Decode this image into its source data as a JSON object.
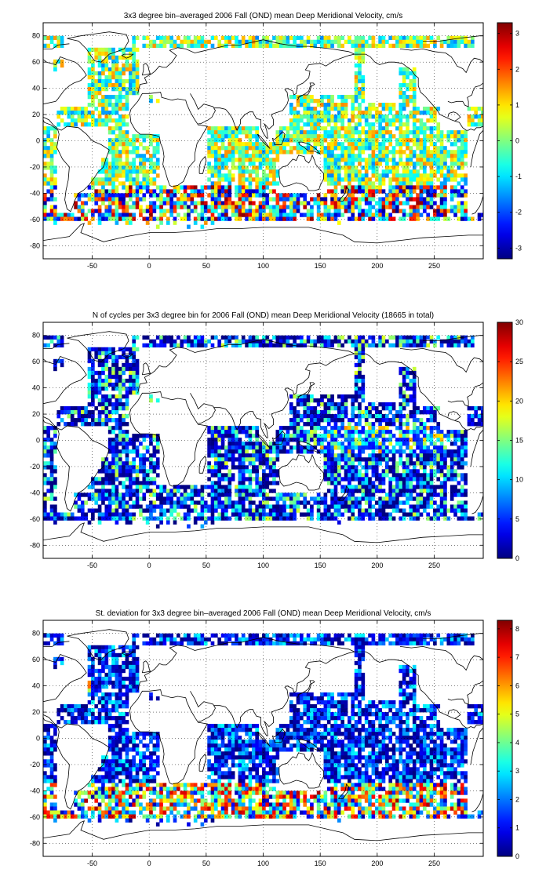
{
  "chart_data": [
    {
      "type": "heatmap",
      "title": "3x3 degree bin–averaged 2006 Fall (OND) mean Deep Meridional Velocity, cm/s",
      "xlabel": "",
      "ylabel": "",
      "xlim": [
        -93,
        293
      ],
      "ylim": [
        -90,
        90
      ],
      "x_ticks": [
        -50,
        0,
        50,
        100,
        150,
        200,
        250
      ],
      "y_ticks": [
        80,
        60,
        40,
        20,
        0,
        -20,
        -40,
        -60,
        -80
      ],
      "grid": "dotted",
      "colormap": "jet",
      "colorbar": {
        "range": [
          -3.3,
          3.3
        ],
        "ticks": [
          3,
          2,
          1,
          0,
          -1,
          -2,
          -3
        ]
      },
      "bin_size_deg": 3,
      "field": "signed"
    },
    {
      "type": "heatmap",
      "title": "N of cycles per 3x3 degree bin for 2006 Fall (OND) mean Deep Meridional Velocity (18665 in total)",
      "xlabel": "",
      "ylabel": "",
      "xlim": [
        -93,
        293
      ],
      "ylim": [
        -90,
        90
      ],
      "x_ticks": [
        -50,
        0,
        50,
        100,
        150,
        200,
        250
      ],
      "y_ticks": [
        80,
        60,
        40,
        20,
        0,
        -20,
        -40,
        -60,
        -80
      ],
      "grid": "dotted",
      "colormap": "jet",
      "colorbar": {
        "range": [
          0,
          30
        ],
        "ticks": [
          30,
          25,
          20,
          15,
          10,
          5,
          0
        ]
      },
      "bin_size_deg": 3,
      "field": "count"
    },
    {
      "type": "heatmap",
      "title": "St. deviation for 3x3 degree bin–averaged 2006 Fall (OND) mean Deep Meridional Velocity, cm/s",
      "xlabel": "",
      "ylabel": "",
      "xlim": [
        -93,
        293
      ],
      "ylim": [
        -90,
        90
      ],
      "x_ticks": [
        -50,
        0,
        50,
        100,
        150,
        200,
        250
      ],
      "y_ticks": [
        80,
        60,
        40,
        20,
        0,
        -20,
        -40,
        -60,
        -80
      ],
      "grid": "dotted",
      "colormap": "jet",
      "colorbar": {
        "range": [
          0,
          8.3
        ],
        "ticks": [
          8,
          7,
          6,
          5,
          4,
          3,
          2,
          1,
          0
        ]
      },
      "bin_size_deg": 3,
      "field": "stdev"
    }
  ]
}
